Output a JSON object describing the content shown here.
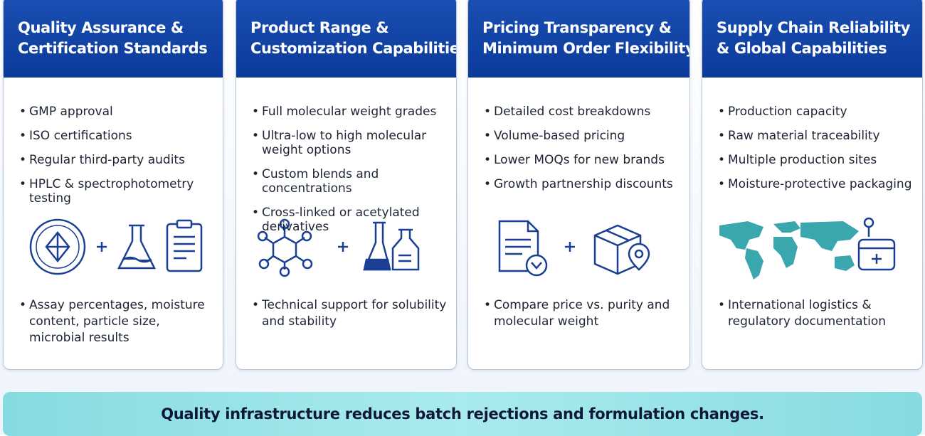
{
  "cards": [
    {
      "title": [
        "Quality Assurance &",
        "Certification Standards"
      ],
      "bullets": [
        "GMP approval",
        "ISO certifications",
        "Regular third-party audits",
        "HPLC & spectrophotometry testing"
      ],
      "bottom_bullets": [
        "Assay percentages, moisture content, particle size, microbial results"
      ]
    },
    {
      "title": [
        "Product Range &",
        "Customization Capabilities"
      ],
      "bullets": [
        "Full molecular weight grades",
        "Ultra-low to high molecular weight options",
        "Custom blends and concentrations",
        "Cross-linked or acetylated derivatives"
      ],
      "bottom_bullets": [
        "Technical support for solubility and stability"
      ]
    },
    {
      "title": [
        "Pricing Transparency &",
        "Minimum Order Flexibility"
      ],
      "bullets": [
        "Detailed cost breakdowns",
        "Volume-based pricing",
        "Lower MOQs for new brands",
        "Growth partnership discounts"
      ],
      "bottom_bullets": [
        "Compare price vs. purity and molecular weight"
      ]
    },
    {
      "title": [
        "Supply Chain Reliability",
        "& Global Capabilities"
      ],
      "bullets": [
        "Production capacity",
        "Raw material traceability",
        "Multiple production sites",
        "Moisture-protective packaging"
      ],
      "bottom_bullets": [
        "International logistics & regulatory documentation"
      ]
    }
  ],
  "banner": "Quality infrastructure reduces batch rejections and formulation changes."
}
